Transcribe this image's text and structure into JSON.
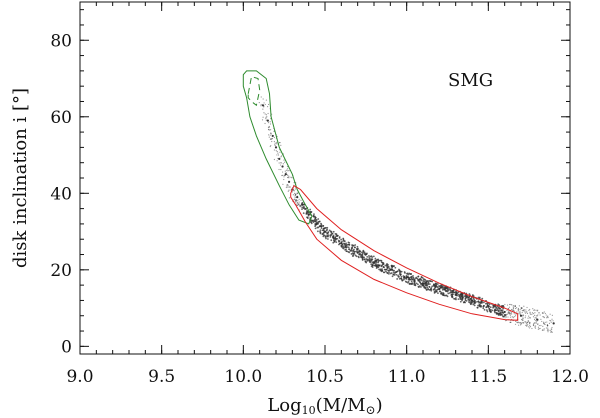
{
  "chart_data": {
    "type": "scatter",
    "title": "",
    "annotation": "SMG",
    "xlabel_main": "Log",
    "xlabel_sub": "10",
    "xlabel_rest": "(M/M",
    "xlabel_sun": "⊙",
    "xlabel_close": ")",
    "ylabel": "disk inclination i [°]",
    "xlim": [
      9.0,
      12.0
    ],
    "ylim": [
      -2,
      90
    ],
    "xticks": [
      "9.0",
      "9.5",
      "10.0",
      "10.5",
      "11.0",
      "11.5",
      "12.0"
    ],
    "yticks": [
      "0",
      "20",
      "40",
      "60",
      "80"
    ],
    "grid": false,
    "colors": {
      "points": "#333333",
      "green_contour": "#2e8b2e",
      "red_contour": "#e02020",
      "axis": "#111111"
    },
    "series": [
      {
        "role": "sample points along M-i relation",
        "x": [
          10.12,
          10.15,
          10.18,
          10.2,
          10.22,
          10.24,
          10.26,
          10.28,
          10.3,
          10.33,
          10.36,
          10.4,
          10.45,
          10.5,
          10.55,
          10.6,
          10.7,
          10.8,
          10.9,
          11.0,
          11.1,
          11.2,
          11.3,
          11.4,
          11.5,
          11.6,
          11.7,
          11.8,
          11.9
        ],
        "y": [
          63,
          59,
          55,
          52,
          49,
          47,
          45,
          43,
          41,
          39,
          37,
          34.5,
          32,
          30,
          28.5,
          27,
          24.5,
          22,
          20,
          18,
          16.5,
          15,
          13.5,
          12,
          10.5,
          9,
          8,
          7,
          6
        ]
      },
      {
        "role": "green contour (outer)",
        "closed": true,
        "x": [
          10.0,
          10.0,
          10.02,
          10.08,
          10.14,
          10.16,
          10.17,
          10.22,
          10.3,
          10.33,
          10.38,
          10.42,
          10.4,
          10.34,
          10.28,
          10.22,
          10.14,
          10.08,
          10.04,
          10.02
        ],
        "y": [
          68,
          71,
          72,
          72,
          70,
          66,
          60,
          52,
          45,
          41,
          37,
          34,
          32,
          33,
          37,
          42,
          49,
          55,
          60,
          65
        ]
      },
      {
        "role": "green contour (inner, dashed)",
        "closed": true,
        "x": [
          10.03,
          10.05,
          10.09,
          10.1,
          10.08,
          10.05,
          10.03
        ],
        "y": [
          66,
          70.5,
          70,
          67,
          63,
          64,
          65
        ]
      },
      {
        "role": "red contour",
        "closed": true,
        "x": [
          10.29,
          10.31,
          10.35,
          10.45,
          10.6,
          10.8,
          11.0,
          11.2,
          11.4,
          11.6,
          11.68,
          11.68,
          11.6,
          11.4,
          11.2,
          11.0,
          10.8,
          10.6,
          10.45,
          10.38,
          10.32,
          10.29
        ],
        "y": [
          40,
          42,
          41,
          36,
          30.5,
          25,
          20.5,
          16.5,
          13,
          10,
          8.5,
          6.8,
          7,
          8.5,
          11,
          14,
          17.5,
          22.5,
          28,
          32.5,
          37,
          39
        ]
      }
    ]
  }
}
